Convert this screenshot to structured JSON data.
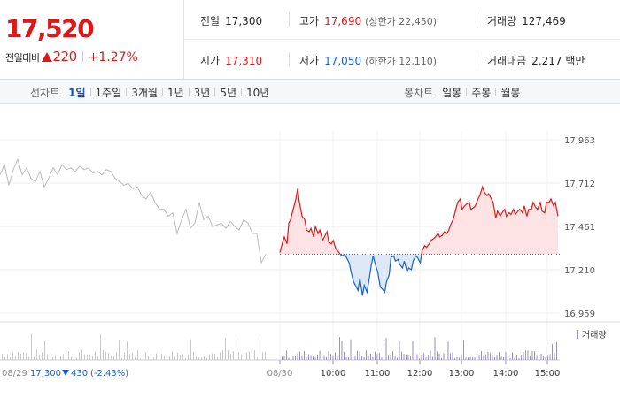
{
  "quote": {
    "price": "17,520",
    "change_label": "전일대비",
    "change_value": "220",
    "change_percent": "+1.27%",
    "stats": {
      "prev_close_label": "전일",
      "prev_close": "17,300",
      "high_label": "고가",
      "high": "17,690",
      "upper_limit": "(상한가 22,450)",
      "volume_label": "거래량",
      "volume": "127,469",
      "open_label": "시가",
      "open": "17,310",
      "low_label": "저가",
      "low": "17,050",
      "lower_limit": "(하한가 12,110)",
      "amount_label": "거래대금",
      "amount": "2,217 백만"
    }
  },
  "tabs": {
    "line_label": "선차트",
    "line_items": [
      "1일",
      "1주일",
      "3개월",
      "1년",
      "3년",
      "5년",
      "10년"
    ],
    "line_active": 0,
    "candle_label": "봉차트",
    "candle_items": [
      "일봉",
      "주봉",
      "월봉"
    ]
  },
  "colors": {
    "up": "#e11717",
    "down": "#1a5fd1",
    "prev": "#bbbbbb",
    "volume": "#9b8ec4"
  },
  "chart_data": {
    "type": "line",
    "y_ticks": [
      "17,963",
      "17,712",
      "17,461",
      "17,210",
      "16,959"
    ],
    "y_tick_values": [
      17963,
      17712,
      17461,
      17210,
      16959
    ],
    "ylim": [
      16959,
      17963
    ],
    "baseline": 17300,
    "x_ticks": [
      "08/30",
      "10:00",
      "11:00",
      "12:00",
      "13:00",
      "14:00",
      "15:00"
    ],
    "prev_day_label": "08/29",
    "prev_day_close": "17,300",
    "prev_day_change": "430",
    "prev_day_pct": "(-2.43%)",
    "volume_legend": "거래량",
    "series": [
      {
        "x": [
          0,
          5,
          10,
          15,
          20,
          25,
          30,
          35,
          40,
          45,
          50,
          55,
          60,
          65,
          70,
          75,
          80,
          85,
          90,
          95,
          100,
          105,
          110,
          115,
          120,
          125,
          130,
          135,
          140,
          145,
          150,
          155,
          160,
          165,
          170,
          175,
          180,
          185,
          190,
          195,
          200,
          205,
          210,
          215,
          220,
          225,
          230,
          235,
          240,
          245,
          250,
          255,
          260,
          265,
          270,
          275,
          280,
          285,
          290,
          295,
          300
        ],
        "y": [
          17760,
          17820,
          17700,
          17790,
          17850,
          17760,
          17800,
          17740,
          17720,
          17780,
          17690,
          17740,
          17800,
          17760,
          17820,
          17790,
          17800,
          17780,
          17810,
          17790,
          17800,
          17770,
          17780,
          17760,
          17790,
          17780,
          17740,
          17720,
          17700,
          17710,
          17680,
          17690,
          17640,
          17620,
          17660,
          17600,
          17560,
          17560,
          17520,
          17540,
          17420,
          17500,
          17560,
          17450,
          17480,
          17600,
          17500,
          17520,
          17460,
          17470,
          17480,
          17450,
          17490,
          17460,
          17440,
          17500,
          17480,
          17420,
          17420,
          17250,
          17300
        ]
      },
      {
        "x": [
          0,
          3,
          5,
          8,
          10,
          12,
          15,
          18,
          20,
          22,
          25,
          28,
          30,
          33,
          35,
          38,
          40,
          43,
          45,
          48,
          50,
          53,
          55,
          58,
          60,
          63,
          65,
          68,
          70,
          73,
          75,
          78,
          80,
          83,
          85,
          88,
          90,
          93,
          95,
          98,
          100,
          103,
          105,
          108,
          110,
          113,
          115,
          118,
          120,
          123,
          125,
          128,
          130,
          133,
          135,
          138,
          140,
          143,
          145,
          148,
          150,
          153,
          155,
          158,
          160,
          163,
          165,
          168,
          170,
          173,
          175,
          178,
          180,
          183,
          185,
          188,
          190,
          193,
          195,
          198,
          200,
          203,
          205,
          208,
          210,
          213,
          215,
          218,
          220,
          223,
          225,
          228,
          230,
          233,
          235,
          238,
          240,
          243,
          245,
          248,
          250,
          253,
          255,
          258,
          260,
          263,
          265,
          268,
          270,
          273,
          275,
          278,
          280,
          283,
          285,
          288,
          290,
          293,
          295,
          298,
          300,
          303,
          305,
          308,
          310,
          313
        ],
        "y": [
          17310,
          17370,
          17400,
          17360,
          17480,
          17500,
          17560,
          17620,
          17680,
          17600,
          17520,
          17500,
          17440,
          17430,
          17450,
          17400,
          17460,
          17420,
          17440,
          17380,
          17400,
          17430,
          17370,
          17360,
          17380,
          17330,
          17320,
          17300,
          17290,
          17300,
          17280,
          17250,
          17200,
          17140,
          17120,
          17090,
          17160,
          17060,
          17120,
          17080,
          17140,
          17240,
          17290,
          17230,
          17200,
          17110,
          17100,
          17080,
          17140,
          17180,
          17280,
          17290,
          17260,
          17270,
          17240,
          17220,
          17260,
          17200,
          17220,
          17210,
          17260,
          17290,
          17280,
          17250,
          17320,
          17350,
          17340,
          17360,
          17380,
          17390,
          17400,
          17420,
          17400,
          17410,
          17430,
          17420,
          17440,
          17480,
          17500,
          17560,
          17600,
          17620,
          17560,
          17580,
          17590,
          17600,
          17560,
          17570,
          17580,
          17620,
          17640,
          17690,
          17660,
          17640,
          17650,
          17620,
          17600,
          17510,
          17550,
          17520,
          17540,
          17560,
          17520,
          17540,
          17530,
          17560,
          17530,
          17550,
          17560,
          17540,
          17580,
          17520,
          17560,
          17560,
          17600,
          17570,
          17560,
          17600,
          17550,
          17540,
          17600,
          17600,
          17620,
          17580,
          17600,
          17520
        ]
      }
    ]
  }
}
